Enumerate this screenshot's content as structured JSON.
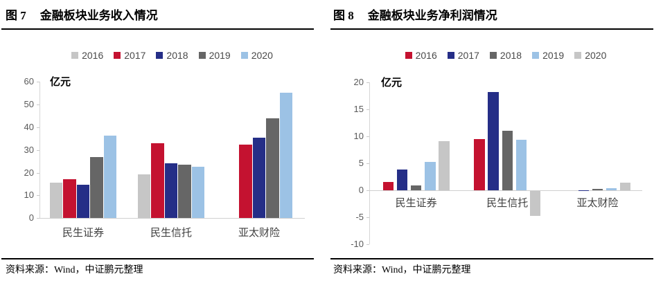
{
  "panels": [
    {
      "title_prefix": "图 7",
      "title_text": "金融板块业务收入情况",
      "source": "资料来源：Wind，中证鹏元整理"
    },
    {
      "title_prefix": "图 8",
      "title_text": "金融板块业务净利润情况",
      "source": "资料来源：Wind，中证鹏元整理"
    }
  ],
  "chart_data": [
    {
      "type": "bar",
      "title": "图 7　金融板块业务收入情况",
      "unit_label": "亿元",
      "xlabel": "",
      "ylabel": "亿元",
      "categories": [
        "民生证券",
        "民生信托",
        "亚太财险"
      ],
      "series": [
        {
          "name": "2016",
          "color": "#c6c6c6",
          "values": [
            15.5,
            19.3,
            null
          ]
        },
        {
          "name": "2017",
          "color": "#c41230",
          "values": [
            17.3,
            33.0,
            32.3
          ]
        },
        {
          "name": "2018",
          "color": "#252e87",
          "values": [
            14.7,
            24.1,
            35.5
          ]
        },
        {
          "name": "2019",
          "color": "#666666",
          "values": [
            27.0,
            23.5,
            44.0
          ]
        },
        {
          "name": "2020",
          "color": "#9cc2e5",
          "values": [
            36.3,
            22.6,
            55.3
          ]
        }
      ],
      "ylim": [
        0,
        60
      ],
      "ytick_step": 10,
      "legend_position": "top",
      "grid": false
    },
    {
      "type": "bar",
      "title": "图 8　金融板块业务净利润情况",
      "unit_label": "亿元",
      "xlabel": "",
      "ylabel": "亿元",
      "categories": [
        "民生证券",
        "民生信托",
        "亚太财险"
      ],
      "series": [
        {
          "name": "2016",
          "color": "#c41230",
          "values": [
            1.6,
            9.5,
            null
          ]
        },
        {
          "name": "2017",
          "color": "#252e87",
          "values": [
            3.9,
            18.2,
            0.1
          ]
        },
        {
          "name": "2018",
          "color": "#666666",
          "values": [
            0.9,
            11.1,
            0.3
          ]
        },
        {
          "name": "2019",
          "color": "#9cc2e5",
          "values": [
            5.3,
            9.4,
            0.4
          ]
        },
        {
          "name": "2020",
          "color": "#c6c6c6",
          "values": [
            9.2,
            -4.6,
            1.5
          ]
        }
      ],
      "ylim": [
        -10,
        20
      ],
      "ytick_step": 5,
      "legend_position": "top",
      "grid": false
    }
  ]
}
